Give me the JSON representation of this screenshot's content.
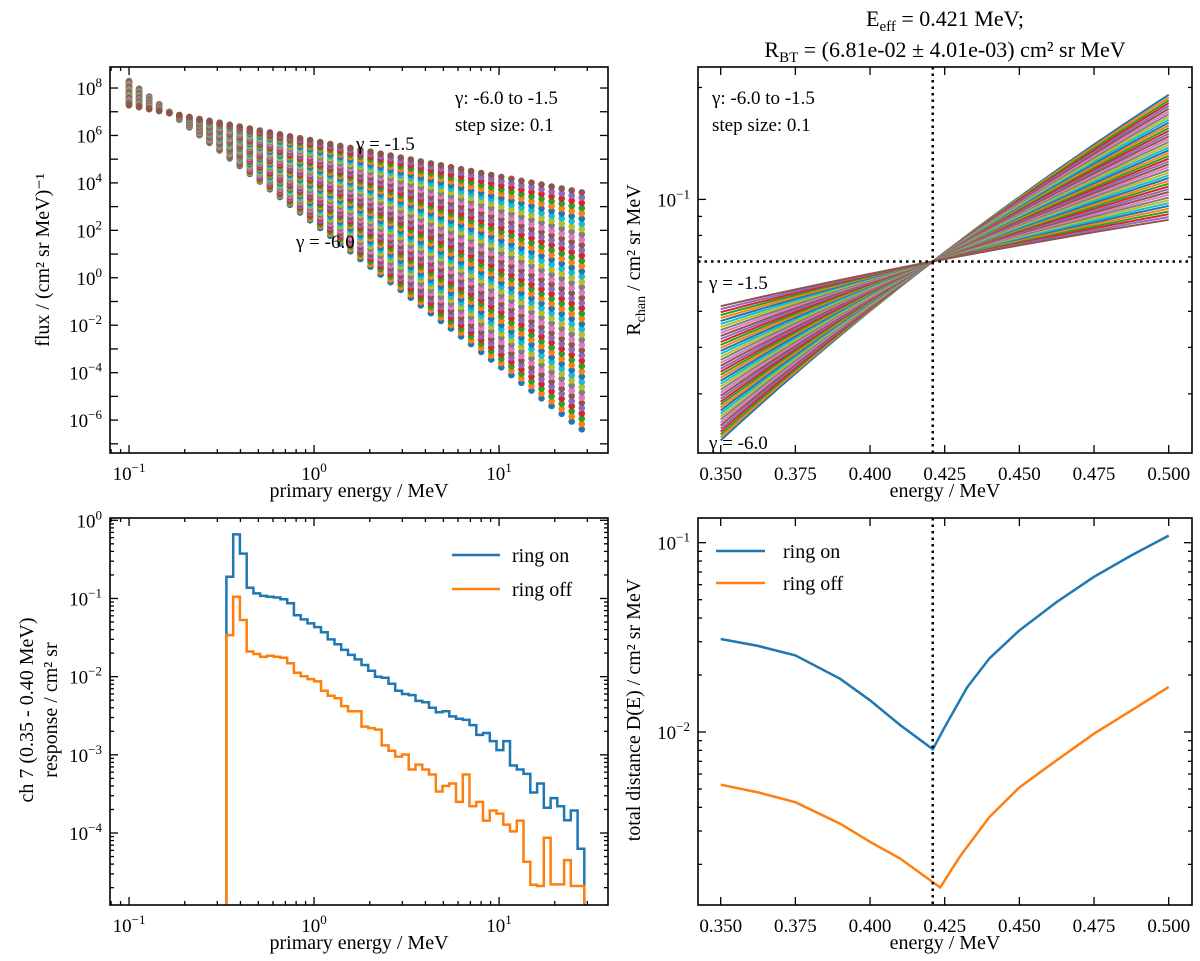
{
  "title": {
    "line1": {
      "main": "E",
      "sub": "eff",
      "rest": " = 0.421 MeV;"
    },
    "line2": {
      "main": "R",
      "sub": "BT",
      "rest": " = (6.81e-02 ± 4.01e-03) cm² sr MeV"
    }
  },
  "chart_data": [
    {
      "id": "flux",
      "type": "scatter",
      "xlabel": "primary energy / MeV",
      "ylabel": "flux / (cm² sr MeV)⁻¹",
      "xscale": "log",
      "yscale": "log",
      "xlim": [
        0.0789,
        38.8
      ],
      "ylim": [
        4.1e-08,
        770000000.0
      ],
      "xticks": [
        0.1,
        1,
        10
      ],
      "xtick_labels": [
        "10^−1",
        "10^0",
        "10^1"
      ],
      "yticks": [
        100000000.0,
        1000000.0,
        10000.0,
        100.0,
        1,
        0.01,
        0.0001,
        1e-06
      ],
      "ytick_labels": [
        "10^8",
        "10^6",
        "10^4",
        "10^2",
        "10^0",
        "10^−2",
        "10^−4",
        "10^−6"
      ],
      "gamma_start": -6.0,
      "gamma_end": -1.5,
      "gamma_step": 0.1,
      "energy_min": 0.1,
      "energy_max": 28,
      "n_points": 46,
      "pivot_energy": 0.169,
      "pivot_flux": 8500000.0,
      "annotations": {
        "range": "γ: -6.0 to -1.5",
        "step": "step size: 0.1",
        "gamma_high": "γ = -1.5",
        "gamma_low": "γ = -6.0"
      }
    },
    {
      "id": "rchan",
      "type": "line",
      "xlabel": "energy / MeV",
      "ylabel": {
        "main": "R",
        "sub": "chan",
        "rest": " / cm² sr MeV"
      },
      "xscale": "linear",
      "yscale": "log",
      "xlim": [
        0.3424,
        0.5078
      ],
      "ylim": [
        0.0208,
        0.227
      ],
      "xticks": [
        0.35,
        0.375,
        0.4,
        0.425,
        0.45,
        0.475,
        0.5
      ],
      "xtick_labels": [
        "0.350",
        "0.375",
        "0.400",
        "0.425",
        "0.450",
        "0.475",
        "0.500"
      ],
      "yticks": [
        0.1
      ],
      "ytick_labels": [
        "10^−1"
      ],
      "gamma_start": -6.0,
      "gamma_end": -1.5,
      "gamma_step": 0.1,
      "energy_min": 0.35,
      "energy_max": 0.5,
      "energy_step": 0.005,
      "E_eff": 0.421,
      "R_BT": 0.0681,
      "annotations": {
        "range": "γ: -6.0 to -1.5",
        "step": "step size: 0.1",
        "gamma_high": "γ = -1.5",
        "gamma_low": "γ = -6.0"
      }
    },
    {
      "id": "hist",
      "type": "bar",
      "xlabel": "primary energy / MeV",
      "ylabel_lines": [
        "ch 7 (0.35 - 0.40 MeV)",
        "response / cm² sr"
      ],
      "xscale": "log",
      "yscale": "log",
      "xlim": [
        0.0789,
        38.8
      ],
      "ylim": [
        1.2e-05,
        1.07
      ],
      "xticks": [
        0.1,
        1,
        10
      ],
      "xtick_labels": [
        "10^−1",
        "10^0",
        "10^1"
      ],
      "yticks": [
        1,
        0.1,
        0.01,
        0.001,
        0.0001
      ],
      "ytick_labels": [
        "10^0",
        "10^−1",
        "10^−2",
        "10^−3",
        "10^−4"
      ],
      "bin_edge_start": 0.336,
      "bin_log_width": 0.0365,
      "series": [
        {
          "name": "ring on",
          "color": "#1f77b4",
          "values": [
            0.19,
            0.66,
            0.375,
            0.137,
            0.116,
            0.108,
            0.105,
            0.103,
            0.098,
            0.087,
            0.061,
            0.054,
            0.048,
            0.043,
            0.037,
            0.03,
            0.026,
            0.022,
            0.019,
            0.0166,
            0.0141,
            0.0119,
            0.01,
            0.0097,
            0.0081,
            0.0066,
            0.006,
            0.0058,
            0.0049,
            0.0047,
            0.004,
            0.0035,
            0.0036,
            0.0031,
            0.0029,
            0.0028,
            0.0024,
            0.0018,
            0.0019,
            0.0015,
            0.00115,
            0.0015,
            0.00073,
            0.00065,
            0.00057,
            0.00033,
            0.00043,
            0.00021,
            0.00028,
            0.00022,
            0.000146,
            0.000194,
            6.3e-05
          ]
        },
        {
          "name": "ring off",
          "color": "#ff7f0e",
          "values": [
            0.034,
            0.105,
            0.053,
            0.021,
            0.0195,
            0.018,
            0.0185,
            0.018,
            0.0175,
            0.0148,
            0.0112,
            0.0101,
            0.0093,
            0.0087,
            0.0066,
            0.0057,
            0.0053,
            0.0042,
            0.0036,
            0.0036,
            0.0023,
            0.0022,
            0.0021,
            0.00132,
            0.00113,
            0.00095,
            0.00101,
            0.00065,
            0.00075,
            0.00065,
            0.00056,
            0.00034,
            0.0004,
            0.00043,
            0.00025,
            0.00056,
            0.00022,
            0.00025,
            0.000144,
            0.000194,
            0.000177,
            0.000128,
            0.000105,
            0.000144,
            4.3e-05,
            2.18e-05,
            2.1e-05,
            8.7e-05,
            2.2e-05,
            2.2e-05,
            4.5e-05,
            2.1e-05,
            2.1e-05
          ]
        }
      ],
      "legend": "top-right"
    },
    {
      "id": "dist",
      "type": "line",
      "xlabel": "energy / MeV",
      "ylabel": "total distance D(E) / cm² sr MeV",
      "xscale": "linear",
      "yscale": "log",
      "xlim": [
        0.3424,
        0.5078
      ],
      "ylim": [
        0.00122,
        0.135
      ],
      "xticks": [
        0.35,
        0.375,
        0.4,
        0.425,
        0.45,
        0.475,
        0.5
      ],
      "xtick_labels": [
        "0.350",
        "0.375",
        "0.400",
        "0.425",
        "0.450",
        "0.475",
        "0.500"
      ],
      "yticks": [
        0.1,
        0.01
      ],
      "ytick_labels": [
        "10^−1",
        "10^−2"
      ],
      "E_eff": 0.421,
      "series": [
        {
          "name": "ring on",
          "color": "#1f77b4",
          "x": [
            0.35,
            0.3625,
            0.375,
            0.39,
            0.4,
            0.41,
            0.421,
            0.425,
            0.4325,
            0.44,
            0.45,
            0.4625,
            0.475,
            0.4875,
            0.5
          ],
          "y": [
            0.031,
            0.0285,
            0.0254,
            0.0191,
            0.0147,
            0.0109,
            0.0081,
            0.0106,
            0.0172,
            0.0245,
            0.0344,
            0.0486,
            0.066,
            0.0857,
            0.109
          ]
        },
        {
          "name": "ring off",
          "color": "#ff7f0e",
          "x": [
            0.35,
            0.3625,
            0.375,
            0.39,
            0.4,
            0.41,
            0.4235,
            0.43,
            0.44,
            0.45,
            0.4625,
            0.475,
            0.4875,
            0.5
          ],
          "y": [
            0.00527,
            0.0048,
            0.00426,
            0.00328,
            0.00263,
            0.00215,
            0.00151,
            0.00219,
            0.00356,
            0.0051,
            0.0071,
            0.0098,
            0.013,
            0.0173
          ]
        }
      ],
      "legend": "top-left"
    }
  ],
  "palette": [
    "#1f77b4",
    "#ff7f0e",
    "#2ca02c",
    "#d62728",
    "#9467bd",
    "#8c564b",
    "#e377c2",
    "#7f7f7f",
    "#bcbd22",
    "#17becf"
  ]
}
